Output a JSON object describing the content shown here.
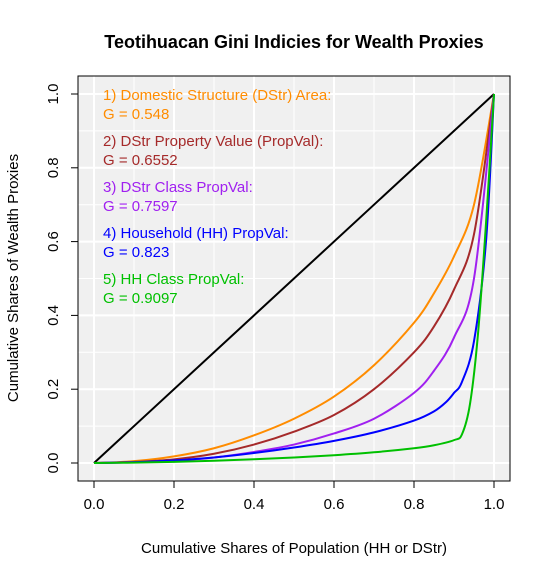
{
  "chart_data": {
    "type": "line",
    "title": "Teotihuacan Gini Indicies for Wealth Proxies",
    "xlabel": "Cumulative Shares of Population (HH or DStr)",
    "ylabel": "Cumulative Shares of Wealth Proxies",
    "xlim": [
      0,
      1
    ],
    "ylim": [
      0,
      1
    ],
    "x_ticks": [
      "0.0",
      "0.2",
      "0.4",
      "0.6",
      "0.8",
      "1.0"
    ],
    "y_ticks": [
      "0.0",
      "0.2",
      "0.4",
      "0.6",
      "0.8",
      "1.0"
    ],
    "grid": true,
    "background": "#f0f0f0",
    "series": [
      {
        "color": "#000000",
        "x": [
          0,
          1
        ],
        "y": [
          0,
          1
        ]
      },
      {
        "color": "#ff8c00",
        "x": [
          0,
          0.1,
          0.2,
          0.3,
          0.4,
          0.5,
          0.6,
          0.7,
          0.8,
          0.85,
          0.9,
          0.95,
          1.0
        ],
        "y": [
          0,
          0.005,
          0.018,
          0.04,
          0.075,
          0.12,
          0.18,
          0.265,
          0.38,
          0.46,
          0.56,
          0.7,
          1.0
        ]
      },
      {
        "color": "#a52a2a",
        "x": [
          0,
          0.1,
          0.2,
          0.3,
          0.4,
          0.5,
          0.6,
          0.7,
          0.8,
          0.85,
          0.9,
          0.95,
          1.0
        ],
        "y": [
          0,
          0.003,
          0.01,
          0.025,
          0.05,
          0.085,
          0.13,
          0.2,
          0.3,
          0.37,
          0.47,
          0.62,
          1.0
        ]
      },
      {
        "color": "#a020f0",
        "x": [
          0,
          0.1,
          0.2,
          0.3,
          0.4,
          0.5,
          0.6,
          0.7,
          0.8,
          0.85,
          0.9,
          0.95,
          1.0
        ],
        "y": [
          0,
          0.002,
          0.006,
          0.015,
          0.03,
          0.05,
          0.08,
          0.12,
          0.19,
          0.25,
          0.34,
          0.5,
          1.0
        ]
      },
      {
        "color": "#0000ff",
        "x": [
          0,
          0.1,
          0.2,
          0.3,
          0.4,
          0.5,
          0.6,
          0.7,
          0.8,
          0.85,
          0.88,
          0.9,
          0.92,
          0.95,
          0.98,
          1.0
        ],
        "y": [
          0,
          0.002,
          0.007,
          0.015,
          0.027,
          0.042,
          0.06,
          0.083,
          0.115,
          0.14,
          0.165,
          0.19,
          0.22,
          0.33,
          0.6,
          1.0
        ]
      },
      {
        "color": "#00c000",
        "x": [
          0,
          0.1,
          0.2,
          0.3,
          0.4,
          0.5,
          0.6,
          0.7,
          0.8,
          0.85,
          0.9,
          0.92,
          0.94,
          0.96,
          0.98,
          1.0
        ],
        "y": [
          0,
          0.001,
          0.003,
          0.006,
          0.01,
          0.015,
          0.021,
          0.029,
          0.04,
          0.048,
          0.062,
          0.078,
          0.16,
          0.35,
          0.65,
          1.0
        ]
      }
    ],
    "annotations": [
      {
        "line1": "1) Domestic Structure (DStr) Area:",
        "line2": "G = 0.548",
        "color": "#ff8c00"
      },
      {
        "line1": "2) DStr Property Value (PropVal):",
        "line2": "G = 0.6552",
        "color": "#a52a2a"
      },
      {
        "line1": "3) DStr Class PropVal:",
        "line2": "G = 0.7597",
        "color": "#a020f0"
      },
      {
        "line1": "4) Household (HH) PropVal:",
        "line2": "G = 0.823",
        "color": "#0000ff"
      },
      {
        "line1": "5) HH Class PropVal:",
        "line2": "G = 0.9097",
        "color": "#00c000"
      }
    ]
  }
}
